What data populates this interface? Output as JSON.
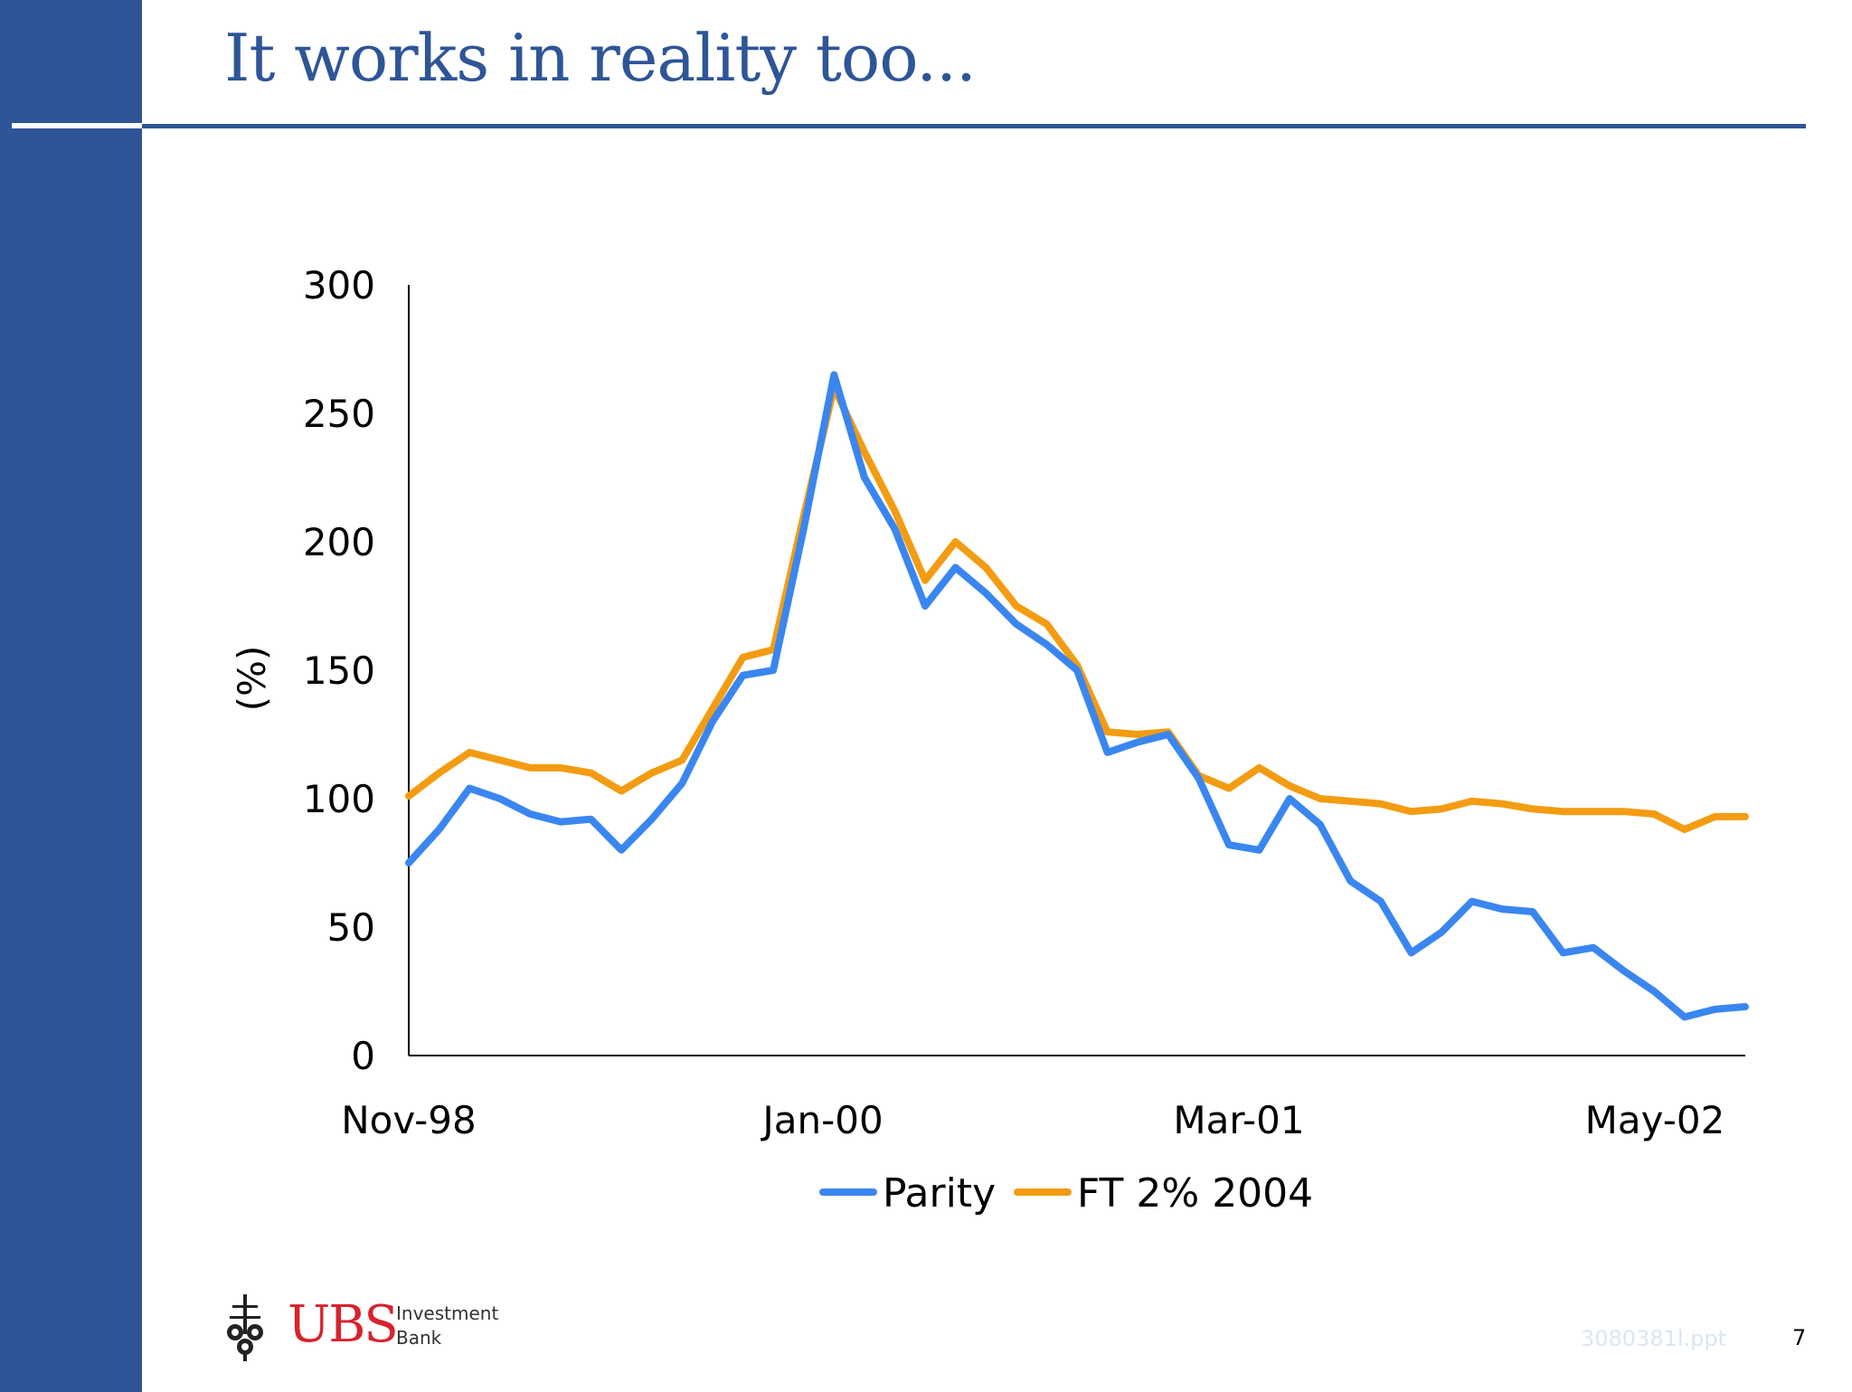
{
  "slide": {
    "title": "It works in reality too...",
    "logo": {
      "name": "UBS",
      "line1": "Investment",
      "line2": "Bank"
    },
    "file_name": "3080381l.ppt",
    "page_number": "7",
    "accent_color": "#2e5597"
  },
  "chart_data": {
    "type": "line",
    "title": "",
    "xlabel": "",
    "ylabel": "(%)",
    "ylim": [
      0,
      300
    ],
    "yticks": [
      "0",
      "50",
      "100",
      "150",
      "200",
      "250",
      "300"
    ],
    "xtick_labels": [
      "Nov-98",
      "Jan-00",
      "Mar-01",
      "May-02"
    ],
    "xlim": [
      "1998-11",
      "2002-07"
    ],
    "grid": false,
    "legend": "bottom",
    "x": [
      "1998-11",
      "1998-12",
      "1999-01",
      "1999-02",
      "1999-03",
      "1999-04",
      "1999-05",
      "1999-06",
      "1999-07",
      "1999-08",
      "1999-09",
      "1999-10",
      "1999-11",
      "1999-12",
      "2000-01",
      "2000-02",
      "2000-03",
      "2000-04",
      "2000-05",
      "2000-06",
      "2000-07",
      "2000-08",
      "2000-09",
      "2000-10",
      "2000-11",
      "2000-12",
      "2001-01",
      "2001-02",
      "2001-03",
      "2001-04",
      "2001-05",
      "2001-06",
      "2001-07",
      "2001-08",
      "2001-09",
      "2001-10",
      "2001-11",
      "2001-12",
      "2002-01",
      "2002-02",
      "2002-03",
      "2002-04",
      "2002-05",
      "2002-06",
      "2002-07"
    ],
    "series": [
      {
        "name": "Parity",
        "color": "#3a86f0",
        "values": [
          75,
          88,
          104,
          100,
          94,
          91,
          92,
          80,
          92,
          106,
          130,
          148,
          150,
          205,
          265,
          225,
          205,
          175,
          190,
          180,
          168,
          160,
          150,
          118,
          122,
          125,
          108,
          82,
          80,
          100,
          90,
          68,
          60,
          40,
          48,
          60,
          57,
          56,
          40,
          42,
          33,
          25,
          15,
          18,
          19
        ]
      },
      {
        "name": "FT 2% 2004",
        "color": "#f39c12",
        "values": [
          101,
          110,
          118,
          115,
          112,
          112,
          110,
          103,
          110,
          115,
          135,
          155,
          158,
          210,
          260,
          235,
          212,
          185,
          200,
          190,
          175,
          168,
          152,
          126,
          125,
          126,
          109,
          104,
          112,
          105,
          100,
          99,
          98,
          95,
          96,
          99,
          98,
          96,
          95,
          95,
          95,
          94,
          88,
          93,
          93
        ]
      }
    ]
  }
}
